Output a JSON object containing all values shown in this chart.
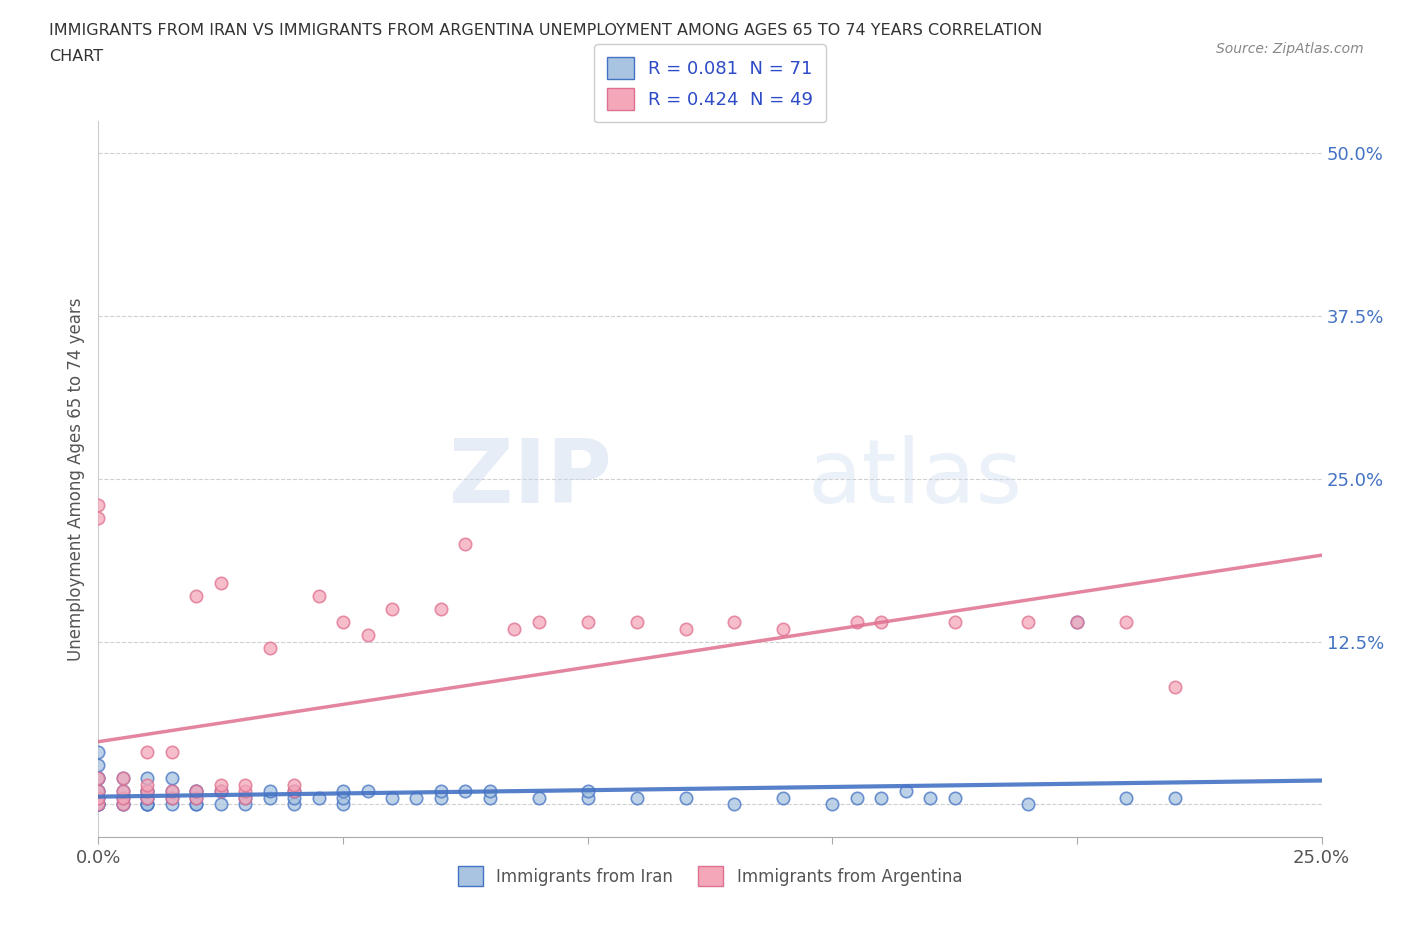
{
  "title_line1": "IMMIGRANTS FROM IRAN VS IMMIGRANTS FROM ARGENTINA UNEMPLOYMENT AMONG AGES 65 TO 74 YEARS CORRELATION",
  "title_line2": "CHART",
  "source_text": "Source: ZipAtlas.com",
  "ylabel_label": "Unemployment Among Ages 65 to 74 years",
  "xlim": [
    0.0,
    0.25
  ],
  "ylim": [
    -0.025,
    0.525
  ],
  "ytick_positions": [
    0.0,
    0.125,
    0.25,
    0.375,
    0.5
  ],
  "yticklabels": [
    "",
    "12.5%",
    "25.0%",
    "37.5%",
    "50.0%"
  ],
  "xtick_positions": [
    0.0,
    0.05,
    0.1,
    0.15,
    0.2,
    0.25
  ],
  "xticklabels": [
    "0.0%",
    "",
    "",
    "",
    "",
    "25.0%"
  ],
  "iran_R": 0.081,
  "iran_N": 71,
  "argentina_R": 0.424,
  "argentina_N": 49,
  "iran_color": "#a8c4e0",
  "argentina_color": "#f4a7b9",
  "iran_line_color": "#4472c4",
  "argentina_line_color": "#e07090",
  "legend_text_color": "#2e4bc7",
  "background_color": "#ffffff",
  "iran_scatter_x": [
    0.0,
    0.0,
    0.0,
    0.0,
    0.0,
    0.0,
    0.0,
    0.0,
    0.0,
    0.0,
    0.0,
    0.005,
    0.005,
    0.005,
    0.005,
    0.005,
    0.01,
    0.01,
    0.01,
    0.01,
    0.01,
    0.01,
    0.01,
    0.01,
    0.015,
    0.015,
    0.015,
    0.015,
    0.02,
    0.02,
    0.02,
    0.02,
    0.02,
    0.025,
    0.025,
    0.03,
    0.03,
    0.035,
    0.035,
    0.04,
    0.04,
    0.04,
    0.045,
    0.05,
    0.05,
    0.05,
    0.055,
    0.06,
    0.065,
    0.07,
    0.07,
    0.075,
    0.08,
    0.08,
    0.09,
    0.1,
    0.1,
    0.11,
    0.12,
    0.13,
    0.14,
    0.15,
    0.155,
    0.16,
    0.165,
    0.17,
    0.175,
    0.19,
    0.2,
    0.21,
    0.22
  ],
  "iran_scatter_y": [
    0.0,
    0.0,
    0.0,
    0.0,
    0.005,
    0.01,
    0.01,
    0.02,
    0.02,
    0.03,
    0.04,
    0.0,
    0.0,
    0.005,
    0.01,
    0.02,
    0.0,
    0.0,
    0.0,
    0.005,
    0.005,
    0.01,
    0.01,
    0.02,
    0.0,
    0.005,
    0.01,
    0.02,
    0.0,
    0.0,
    0.005,
    0.01,
    0.01,
    0.0,
    0.01,
    0.0,
    0.005,
    0.005,
    0.01,
    0.0,
    0.005,
    0.01,
    0.005,
    0.0,
    0.005,
    0.01,
    0.01,
    0.005,
    0.005,
    0.005,
    0.01,
    0.01,
    0.005,
    0.01,
    0.005,
    0.005,
    0.01,
    0.005,
    0.005,
    0.0,
    0.005,
    0.0,
    0.005,
    0.005,
    0.01,
    0.005,
    0.005,
    0.0,
    0.14,
    0.005,
    0.005
  ],
  "argentina_scatter_x": [
    0.0,
    0.0,
    0.0,
    0.0,
    0.0,
    0.0,
    0.005,
    0.005,
    0.005,
    0.005,
    0.01,
    0.01,
    0.01,
    0.01,
    0.015,
    0.015,
    0.015,
    0.02,
    0.02,
    0.02,
    0.025,
    0.025,
    0.025,
    0.03,
    0.03,
    0.03,
    0.035,
    0.04,
    0.04,
    0.045,
    0.05,
    0.055,
    0.06,
    0.07,
    0.075,
    0.085,
    0.09,
    0.1,
    0.11,
    0.12,
    0.13,
    0.14,
    0.155,
    0.16,
    0.175,
    0.19,
    0.2,
    0.21,
    0.22
  ],
  "argentina_scatter_y": [
    0.0,
    0.005,
    0.01,
    0.02,
    0.23,
    0.22,
    0.0,
    0.005,
    0.01,
    0.02,
    0.005,
    0.01,
    0.015,
    0.04,
    0.005,
    0.01,
    0.04,
    0.005,
    0.01,
    0.16,
    0.01,
    0.015,
    0.17,
    0.005,
    0.01,
    0.015,
    0.12,
    0.01,
    0.015,
    0.16,
    0.14,
    0.13,
    0.15,
    0.15,
    0.2,
    0.135,
    0.14,
    0.14,
    0.14,
    0.135,
    0.14,
    0.135,
    0.14,
    0.14,
    0.14,
    0.14,
    0.14,
    0.14,
    0.09
  ]
}
